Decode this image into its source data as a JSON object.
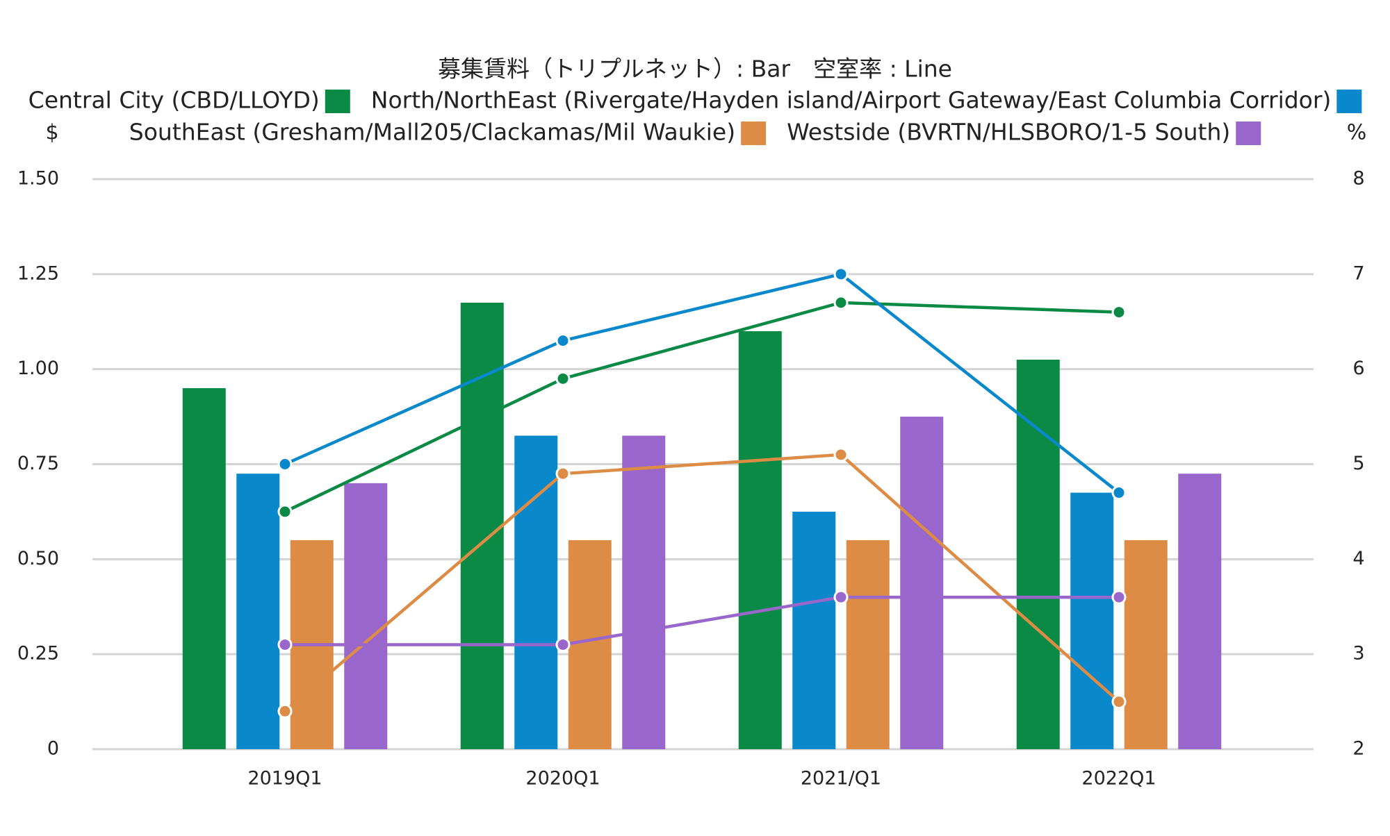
{
  "chart_data": {
    "type": "bar_line",
    "title": "募集賃料（トリプルネット）: Bar　空室率 : Line",
    "y_label": "$",
    "y2_label": "%",
    "categories": [
      "2019Q1",
      "2020Q1",
      "2021/Q1",
      "2022Q1"
    ],
    "series": [
      {
        "name": "Central City (CBD/LLOYD)",
        "color": "#0a8a44",
        "values": [
          0.95,
          1.175,
          1.1,
          1.025
        ]
      },
      {
        "name": "North/NorthEast (Rivergate/Hayden island/Airport Gateway/East Columbia Corridor)",
        "color": "#0a88cc",
        "values": [
          0.725,
          0.825,
          0.625,
          0.675
        ]
      },
      {
        "name": "SouthEast (Gresham/Mall205/Clackamas/Mil Waukie)",
        "color": "#dd8c45",
        "values": [
          0.55,
          0.55,
          0.55,
          0.55
        ]
      },
      {
        "name": "Westside (BVRTN/HLSBORO/1-5 South)",
        "color": "#9966cc",
        "values": [
          0.7,
          0.825,
          0.875,
          0.725
        ]
      }
    ],
    "line_series": [
      {
        "color": "#0a8a44",
        "axis": "y2",
        "values": [
          4.5,
          5.9,
          6.7,
          6.6
        ]
      },
      {
        "color": "#0a88cc",
        "axis": "y2",
        "values": [
          5.0,
          6.3,
          7.0,
          4.7
        ]
      },
      {
        "color": "#dd8c45",
        "axis": "y2",
        "values": [
          2.4,
          4.9,
          5.1,
          2.5
        ]
      },
      {
        "color": "#9966cc",
        "axis": "y2",
        "values": [
          3.1,
          3.1,
          3.6,
          3.6
        ]
      }
    ],
    "ylim": [
      0,
      1.5
    ],
    "yticks": [
      0,
      0.25,
      {
        "value": 0.5,
        "label": "0.50"
      },
      0.75,
      {
        "value": 1,
        "label": "1.00"
      },
      1.25,
      {
        "value": 1.5,
        "label": "1.50"
      }
    ],
    "y2lim": [
      2,
      8
    ],
    "y2ticks": [
      2,
      3,
      4,
      5,
      6,
      7,
      8
    ],
    "grid": true
  }
}
